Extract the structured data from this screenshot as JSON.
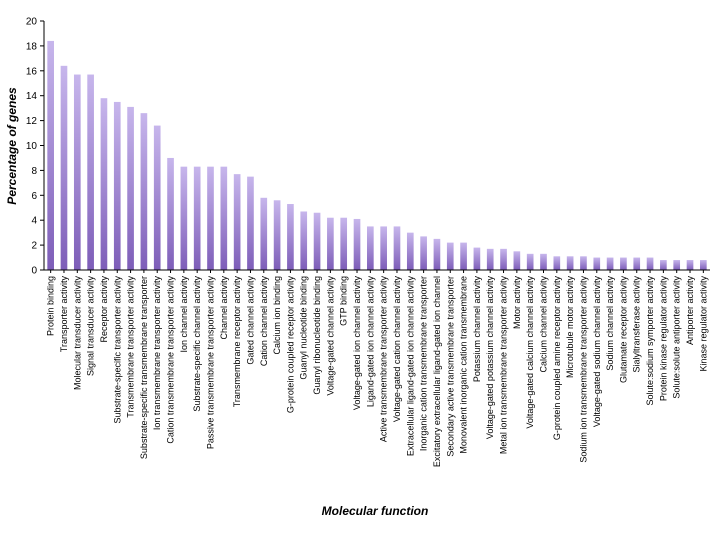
{
  "chart_data": {
    "type": "bar",
    "title": "",
    "xlabel": "Molecular function",
    "ylabel": "Percentage of genes",
    "ylim": [
      0,
      20
    ],
    "yticks": [
      0,
      2,
      4,
      6,
      8,
      10,
      12,
      14,
      16,
      18,
      20
    ],
    "grid": false,
    "legend": "none",
    "bar_color_top": "#c7b6ec",
    "bar_color_bottom": "#7d5db8",
    "categories": [
      "Protein binding",
      "Transporter activity",
      "Molecular transducer activity",
      "Signal transducer activity",
      "Receptor activity",
      "Substrate-specific transporter activity",
      "Transmembrane transporter activity",
      "Substrate-specific transmembrane transporter",
      "Ion transmembrane transporter activity",
      "Cation transmembrane transporter activity",
      "Ion channel activity",
      "Substrate-specific channel activity",
      "Passive transmembrane transporter activity",
      "Channel activity",
      "Transmembrane receptor activity",
      "Gated channel activity",
      "Cation channel activity",
      "Calcium ion binding",
      "G-protein coupled receptor activity",
      "Guanyl nucleotide binding",
      "Guanyl ribonucleotide binding",
      "Voltage-gated channel activity",
      "GTP binding",
      "Voltage-gated ion channel activity",
      "Ligand-gated ion channel activity",
      "Active transmembrane transporter activity",
      "Voltage-gated cation channel activity",
      "Extracellular ligand-gated ion channel activity",
      "Inorganic cation transmembrane transporter",
      "Excitatory extracellular ligand-gated ion channel",
      "Secondary active transmembrane transporter",
      "Monovalent inorganic cation transmembrane",
      "Potassium channel activity",
      "Voltage-gated potassium channel activity",
      "Metal ion transmembrane transporter activity",
      "Motor activity",
      "Voltage-gated calcium channel activity",
      "Calcium channel activity",
      "G-protein coupled amine receptor activity",
      "Microtubule motor activity",
      "Sodium ion transmembrane transporter activity",
      "Voltage-gated sodium channel activity",
      "Sodium channel activity",
      "Glutamate receptor activity",
      "Sialyltransferase activity",
      "Solute:sodium symporter activity",
      "Protein kinase regulator activity",
      "Solute:solute antiporter activity",
      "Antiporter activity",
      "Kinase regulator activity"
    ],
    "values": [
      18.4,
      16.4,
      15.7,
      15.7,
      13.8,
      13.5,
      13.1,
      12.6,
      11.6,
      9.0,
      8.3,
      8.3,
      8.3,
      8.3,
      7.7,
      7.5,
      5.8,
      5.6,
      5.3,
      4.7,
      4.6,
      4.2,
      4.2,
      4.1,
      3.5,
      3.5,
      3.5,
      3.0,
      2.7,
      2.5,
      2.2,
      2.2,
      1.8,
      1.7,
      1.7,
      1.5,
      1.3,
      1.3,
      1.1,
      1.1,
      1.1,
      1.0,
      1.0,
      1.0,
      1.0,
      1.0,
      0.8,
      0.8,
      0.8,
      0.8
    ]
  }
}
